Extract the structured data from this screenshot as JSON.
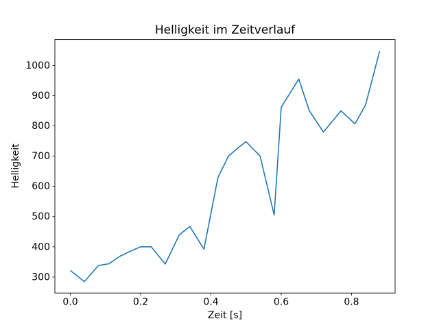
{
  "chart_data": {
    "type": "line",
    "title": "Helligkeit im Zeitverlauf",
    "xlabel": "Zeit [s]",
    "ylabel": "Helligkeit",
    "line_color": "#1f77b4",
    "grid": false,
    "legend": null,
    "xlim": [
      -0.044,
      0.924
    ],
    "ylim": [
      247,
      1086
    ],
    "xticks": [
      0.0,
      0.2,
      0.4,
      0.6,
      0.8
    ],
    "xtick_labels": [
      "0.0",
      "0.2",
      "0.4",
      "0.6",
      "0.8"
    ],
    "yticks": [
      300,
      400,
      500,
      600,
      700,
      800,
      900,
      1000
    ],
    "ytick_labels": [
      "300",
      "400",
      "500",
      "600",
      "700",
      "800",
      "900",
      "1000"
    ],
    "x": [
      0.0,
      0.04,
      0.08,
      0.11,
      0.14,
      0.17,
      0.2,
      0.23,
      0.27,
      0.31,
      0.34,
      0.38,
      0.42,
      0.45,
      0.48,
      0.5,
      0.54,
      0.58,
      0.6,
      0.65,
      0.68,
      0.72,
      0.77,
      0.81,
      0.84,
      0.88
    ],
    "y": [
      322,
      285,
      338,
      344,
      368,
      385,
      400,
      400,
      343,
      440,
      467,
      392,
      630,
      700,
      730,
      748,
      700,
      505,
      862,
      955,
      850,
      780,
      850,
      807,
      870,
      1048
    ]
  }
}
